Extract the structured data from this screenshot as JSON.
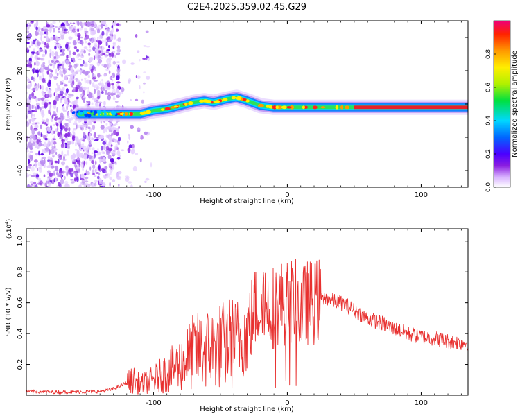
{
  "title": "C2E4.2025.359.02.45.G29",
  "colors": {
    "snr_line": "#e8302f",
    "background": "#ffffff",
    "axis": "#000000"
  },
  "chart_data": [
    {
      "type": "heatmap",
      "xlabel": "Height of straight line (km)",
      "ylabel": "Frequency (Hz)",
      "xlim": [
        -195,
        135
      ],
      "ylim": [
        -50,
        50
      ],
      "xticks": [
        -100,
        0,
        100
      ],
      "yticks": [
        -40,
        -20,
        0,
        20,
        40
      ],
      "colorbar": {
        "label": "Normalized spectral amplitude",
        "range": [
          0,
          1
        ],
        "ticks": [
          0.0,
          0.2,
          0.4,
          0.6,
          0.8
        ],
        "colormap": [
          "#ffffff",
          "#d9b3ff",
          "#8a1de0",
          "#4b00ff",
          "#0066ff",
          "#00d8ff",
          "#00e040",
          "#b0f000",
          "#ffee00",
          "#ff9900",
          "#ff2200",
          "#ee0077"
        ]
      },
      "ridge": {
        "x": [
          -155,
          -140,
          -125,
          -110,
          -100,
          -90,
          -80,
          -70,
          -62,
          -55,
          -45,
          -38,
          -30,
          -20,
          -10,
          0,
          10,
          20,
          40,
          60,
          80,
          100,
          120,
          135
        ],
        "frequency_hz": [
          -6,
          -6,
          -6,
          -6,
          -4,
          -3,
          -1,
          1,
          2,
          1,
          3,
          4,
          2,
          -1,
          -2,
          -2,
          -2,
          -2,
          -2,
          -2,
          -2,
          -2,
          -2,
          -2
        ]
      },
      "noise_region_x": [
        -195,
        -100
      ]
    },
    {
      "type": "line",
      "xlabel": "Height of straight line (km)",
      "ylabel": "SNR (10 * v/v)",
      "y_multiplier": "(x10",
      "y_multiplier_exp": "4",
      "y_multiplier_close": ")",
      "xlim": [
        -195,
        135
      ],
      "ylim": [
        0,
        1.08
      ],
      "xticks": [
        -100,
        0,
        100
      ],
      "yticks": [
        0.2,
        0.4,
        0.6,
        0.8,
        1.0
      ],
      "series": [
        {
          "name": "SNR",
          "x": [
            -195,
            -170,
            -140,
            -130,
            -120,
            -115,
            -110,
            -100,
            -90,
            -80,
            -70,
            -60,
            -50,
            -40,
            -30,
            -25,
            -20,
            -18,
            -15,
            -10,
            -5,
            0,
            5,
            10,
            15,
            20,
            25,
            30,
            35,
            40,
            45,
            50,
            60,
            70,
            80,
            90,
            100,
            110,
            120,
            130,
            135
          ],
          "y": [
            0.025,
            0.02,
            0.025,
            0.04,
            0.08,
            0.1,
            0.07,
            0.1,
            0.15,
            0.2,
            0.28,
            0.3,
            0.32,
            0.35,
            0.4,
            0.55,
            0.6,
            0.7,
            0.55,
            0.58,
            0.6,
            0.6,
            0.62,
            0.55,
            0.6,
            0.6,
            0.62,
            0.63,
            0.61,
            0.6,
            0.58,
            0.55,
            0.5,
            0.47,
            0.43,
            0.4,
            0.38,
            0.37,
            0.35,
            0.34,
            0.34
          ]
        }
      ]
    }
  ]
}
